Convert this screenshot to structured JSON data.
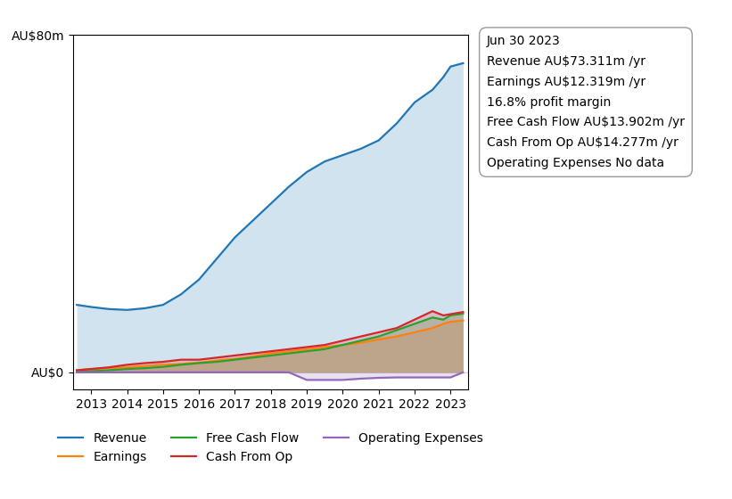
{
  "chart_data": {
    "type": "area",
    "x": [
      2012.6,
      2013.0,
      2013.5,
      2014.0,
      2014.5,
      2015.0,
      2015.5,
      2016.0,
      2016.5,
      2017.0,
      2017.5,
      2018.0,
      2018.5,
      2019.0,
      2019.5,
      2020.0,
      2020.5,
      2021.0,
      2021.5,
      2022.0,
      2022.5,
      2022.8,
      2023.0,
      2023.35
    ],
    "series": [
      {
        "name": "Revenue",
        "values": [
          16.0,
          15.5,
          15.0,
          14.8,
          15.2,
          16.0,
          18.5,
          22.0,
          27.0,
          32.0,
          36.0,
          40.0,
          44.0,
          47.5,
          50.0,
          51.5,
          53.0,
          55.0,
          59.0,
          64.0,
          67.0,
          70.0,
          72.5,
          73.3
        ]
      },
      {
        "name": "Earnings",
        "values": [
          0.5,
          0.8,
          1.0,
          1.2,
          1.5,
          1.8,
          2.0,
          2.3,
          2.8,
          3.2,
          3.8,
          4.5,
          5.0,
          5.5,
          6.0,
          6.5,
          7.0,
          7.8,
          8.5,
          9.5,
          10.5,
          11.5,
          12.0,
          12.3
        ]
      },
      {
        "name": "Free Cash Flow",
        "values": [
          0.2,
          0.3,
          0.5,
          0.8,
          1.0,
          1.3,
          1.8,
          2.2,
          2.5,
          3.0,
          3.5,
          4.0,
          4.5,
          5.0,
          5.5,
          6.5,
          7.5,
          8.5,
          10.0,
          11.5,
          13.0,
          12.5,
          13.5,
          13.9
        ]
      },
      {
        "name": "Cash From Op",
        "values": [
          0.5,
          0.8,
          1.2,
          1.8,
          2.2,
          2.5,
          3.0,
          3.0,
          3.5,
          4.0,
          4.5,
          5.0,
          5.5,
          6.0,
          6.5,
          7.5,
          8.5,
          9.5,
          10.5,
          12.5,
          14.5,
          13.5,
          13.8,
          14.3
        ]
      },
      {
        "name": "Operating Expenses",
        "values": [
          0.0,
          0.0,
          0.0,
          0.0,
          0.0,
          0.0,
          0.0,
          0.0,
          0.0,
          0.0,
          0.0,
          0.0,
          0.0,
          -1.8,
          -1.8,
          -1.8,
          -1.5,
          -1.3,
          -1.2,
          -1.2,
          -1.2,
          -1.2,
          -1.2,
          0.0
        ]
      }
    ],
    "xlim": [
      2012.5,
      2023.5
    ],
    "xticks": [
      2013,
      2014,
      2015,
      2016,
      2017,
      2018,
      2019,
      2020,
      2021,
      2022,
      2023
    ],
    "ylim": [
      -4,
      80
    ],
    "yticks": [
      {
        "value": 0,
        "label": "AU$0"
      },
      {
        "value": 80,
        "label": "AU$80m"
      }
    ],
    "grid": true,
    "legend": "upper center",
    "annotations": [
      "Jun 30 2023",
      "Revenue AU$73.311m /yr",
      "Earnings AU$12.319m /yr",
      "16.8% profit margin",
      "Free Cash Flow AU$13.902m /yr",
      "Cash From Op AU$14.277m /yr",
      "Operating Expenses No data"
    ]
  }
}
